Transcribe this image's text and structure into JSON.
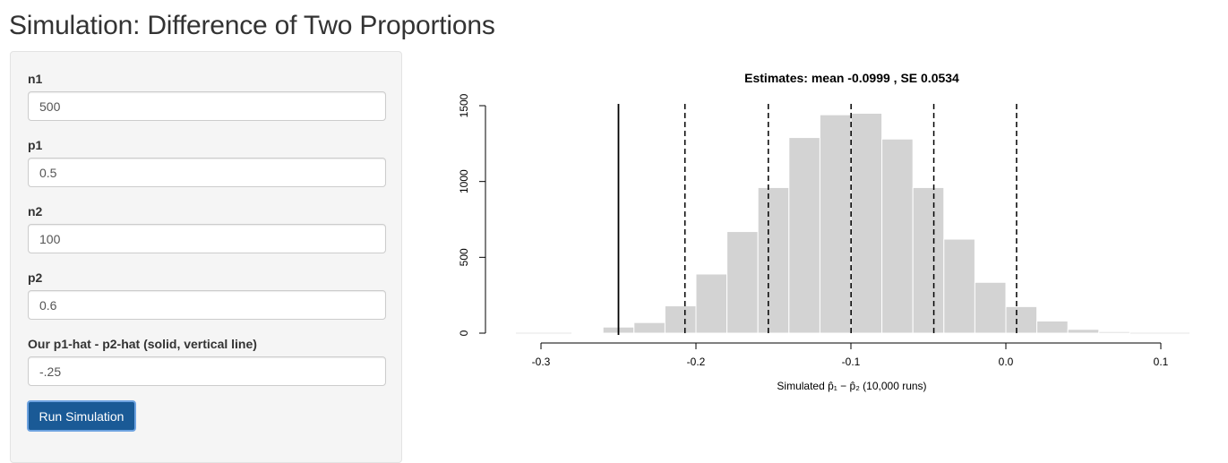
{
  "page": {
    "title": "Simulation: Difference of Two Proportions"
  },
  "sidebar": {
    "fields": [
      {
        "label": "n1",
        "value": "500"
      },
      {
        "label": "p1",
        "value": "0.5"
      },
      {
        "label": "n2",
        "value": "100"
      },
      {
        "label": "p2",
        "value": "0.6"
      },
      {
        "label": "Our p1-hat - p2-hat (solid, vertical line)",
        "value": "-.25"
      }
    ],
    "run_button_label": "Run Simulation"
  },
  "colors": {
    "bar_fill": "#d3d3d3",
    "bar_stroke": "#ffffff",
    "button_bg": "#1a5a96",
    "line": "#000000"
  },
  "chart_data": {
    "type": "bar",
    "title": "Estimates: mean -0.0999 , SE 0.0534",
    "xlabel": "Simulated p̂₁ − p̂₂ (10,000 runs)",
    "ylabel": "",
    "bin_width": 0.02,
    "bin_starts": [
      -0.3,
      -0.28,
      -0.26,
      -0.24,
      -0.22,
      -0.2,
      -0.18,
      -0.16,
      -0.14,
      -0.12,
      -0.1,
      -0.08,
      -0.06,
      -0.04,
      -0.02,
      0.0,
      0.02,
      0.04,
      0.06,
      0.08,
      0.1
    ],
    "values": [
      0,
      3,
      40,
      70,
      180,
      390,
      670,
      960,
      1290,
      1440,
      1450,
      1280,
      960,
      620,
      335,
      175,
      80,
      25,
      10,
      0,
      0
    ],
    "xlim": [
      -0.3,
      0.1
    ],
    "ylim": [
      0,
      1500
    ],
    "x_ticks": [
      -0.3,
      -0.2,
      -0.1,
      0.0,
      0.1
    ],
    "x_tick_labels": [
      "-0.3",
      "-0.2",
      "-0.1",
      "0.0",
      "0.1"
    ],
    "y_ticks": [
      0,
      500,
      1000,
      1500
    ],
    "y_tick_labels": [
      "0",
      "500",
      "1000",
      "1500"
    ],
    "solid_line": -0.25,
    "dashed_lines": [
      -0.2071,
      -0.1533,
      -0.0999,
      -0.0465,
      0.0069
    ],
    "grid": false
  }
}
